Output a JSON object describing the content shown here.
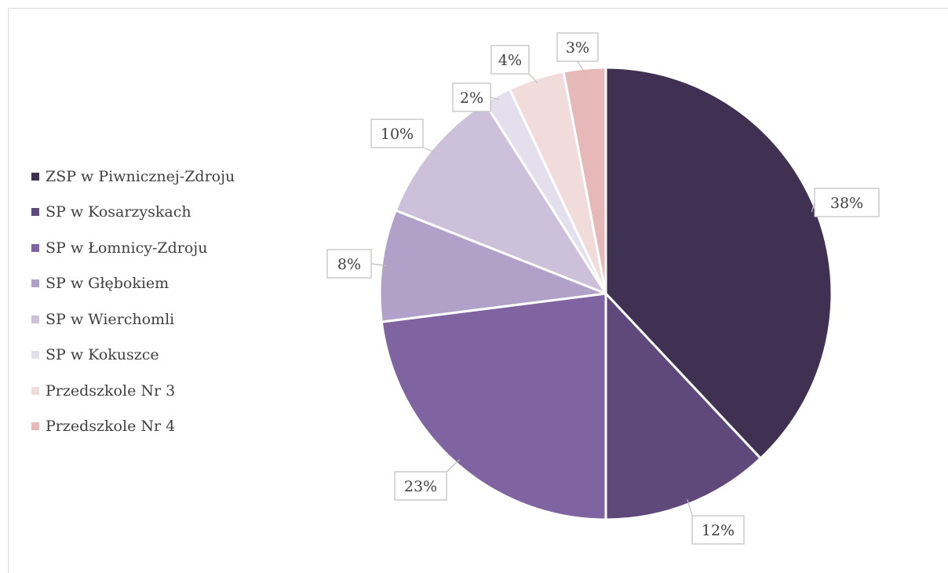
{
  "chart_data": {
    "type": "pie",
    "categories": [
      "ZSP w Piwnicznej-Zdroju",
      "SP w Kosarzyskach",
      "SP w Łomnicy-Zdroju",
      "SP w Głębokiem",
      "SP w Wierchomli",
      "SP w Kokuszce",
      "Przedszkole Nr 3",
      "Przedszkole Nr 4"
    ],
    "values": [
      38,
      12,
      23,
      8,
      10,
      2,
      4,
      3
    ],
    "labels": [
      "38%",
      "12%",
      "23%",
      "8%",
      "10%",
      "2%",
      "4%",
      "3%"
    ],
    "colors": [
      "#403152",
      "#5f497a",
      "#8064a2",
      "#b1a0c7",
      "#ccc0da",
      "#e4dfec",
      "#f2dcdb",
      "#e6b8b7"
    ],
    "legend_position": "left",
    "start_angle": "12 o'clock",
    "direction": "clockwise"
  }
}
